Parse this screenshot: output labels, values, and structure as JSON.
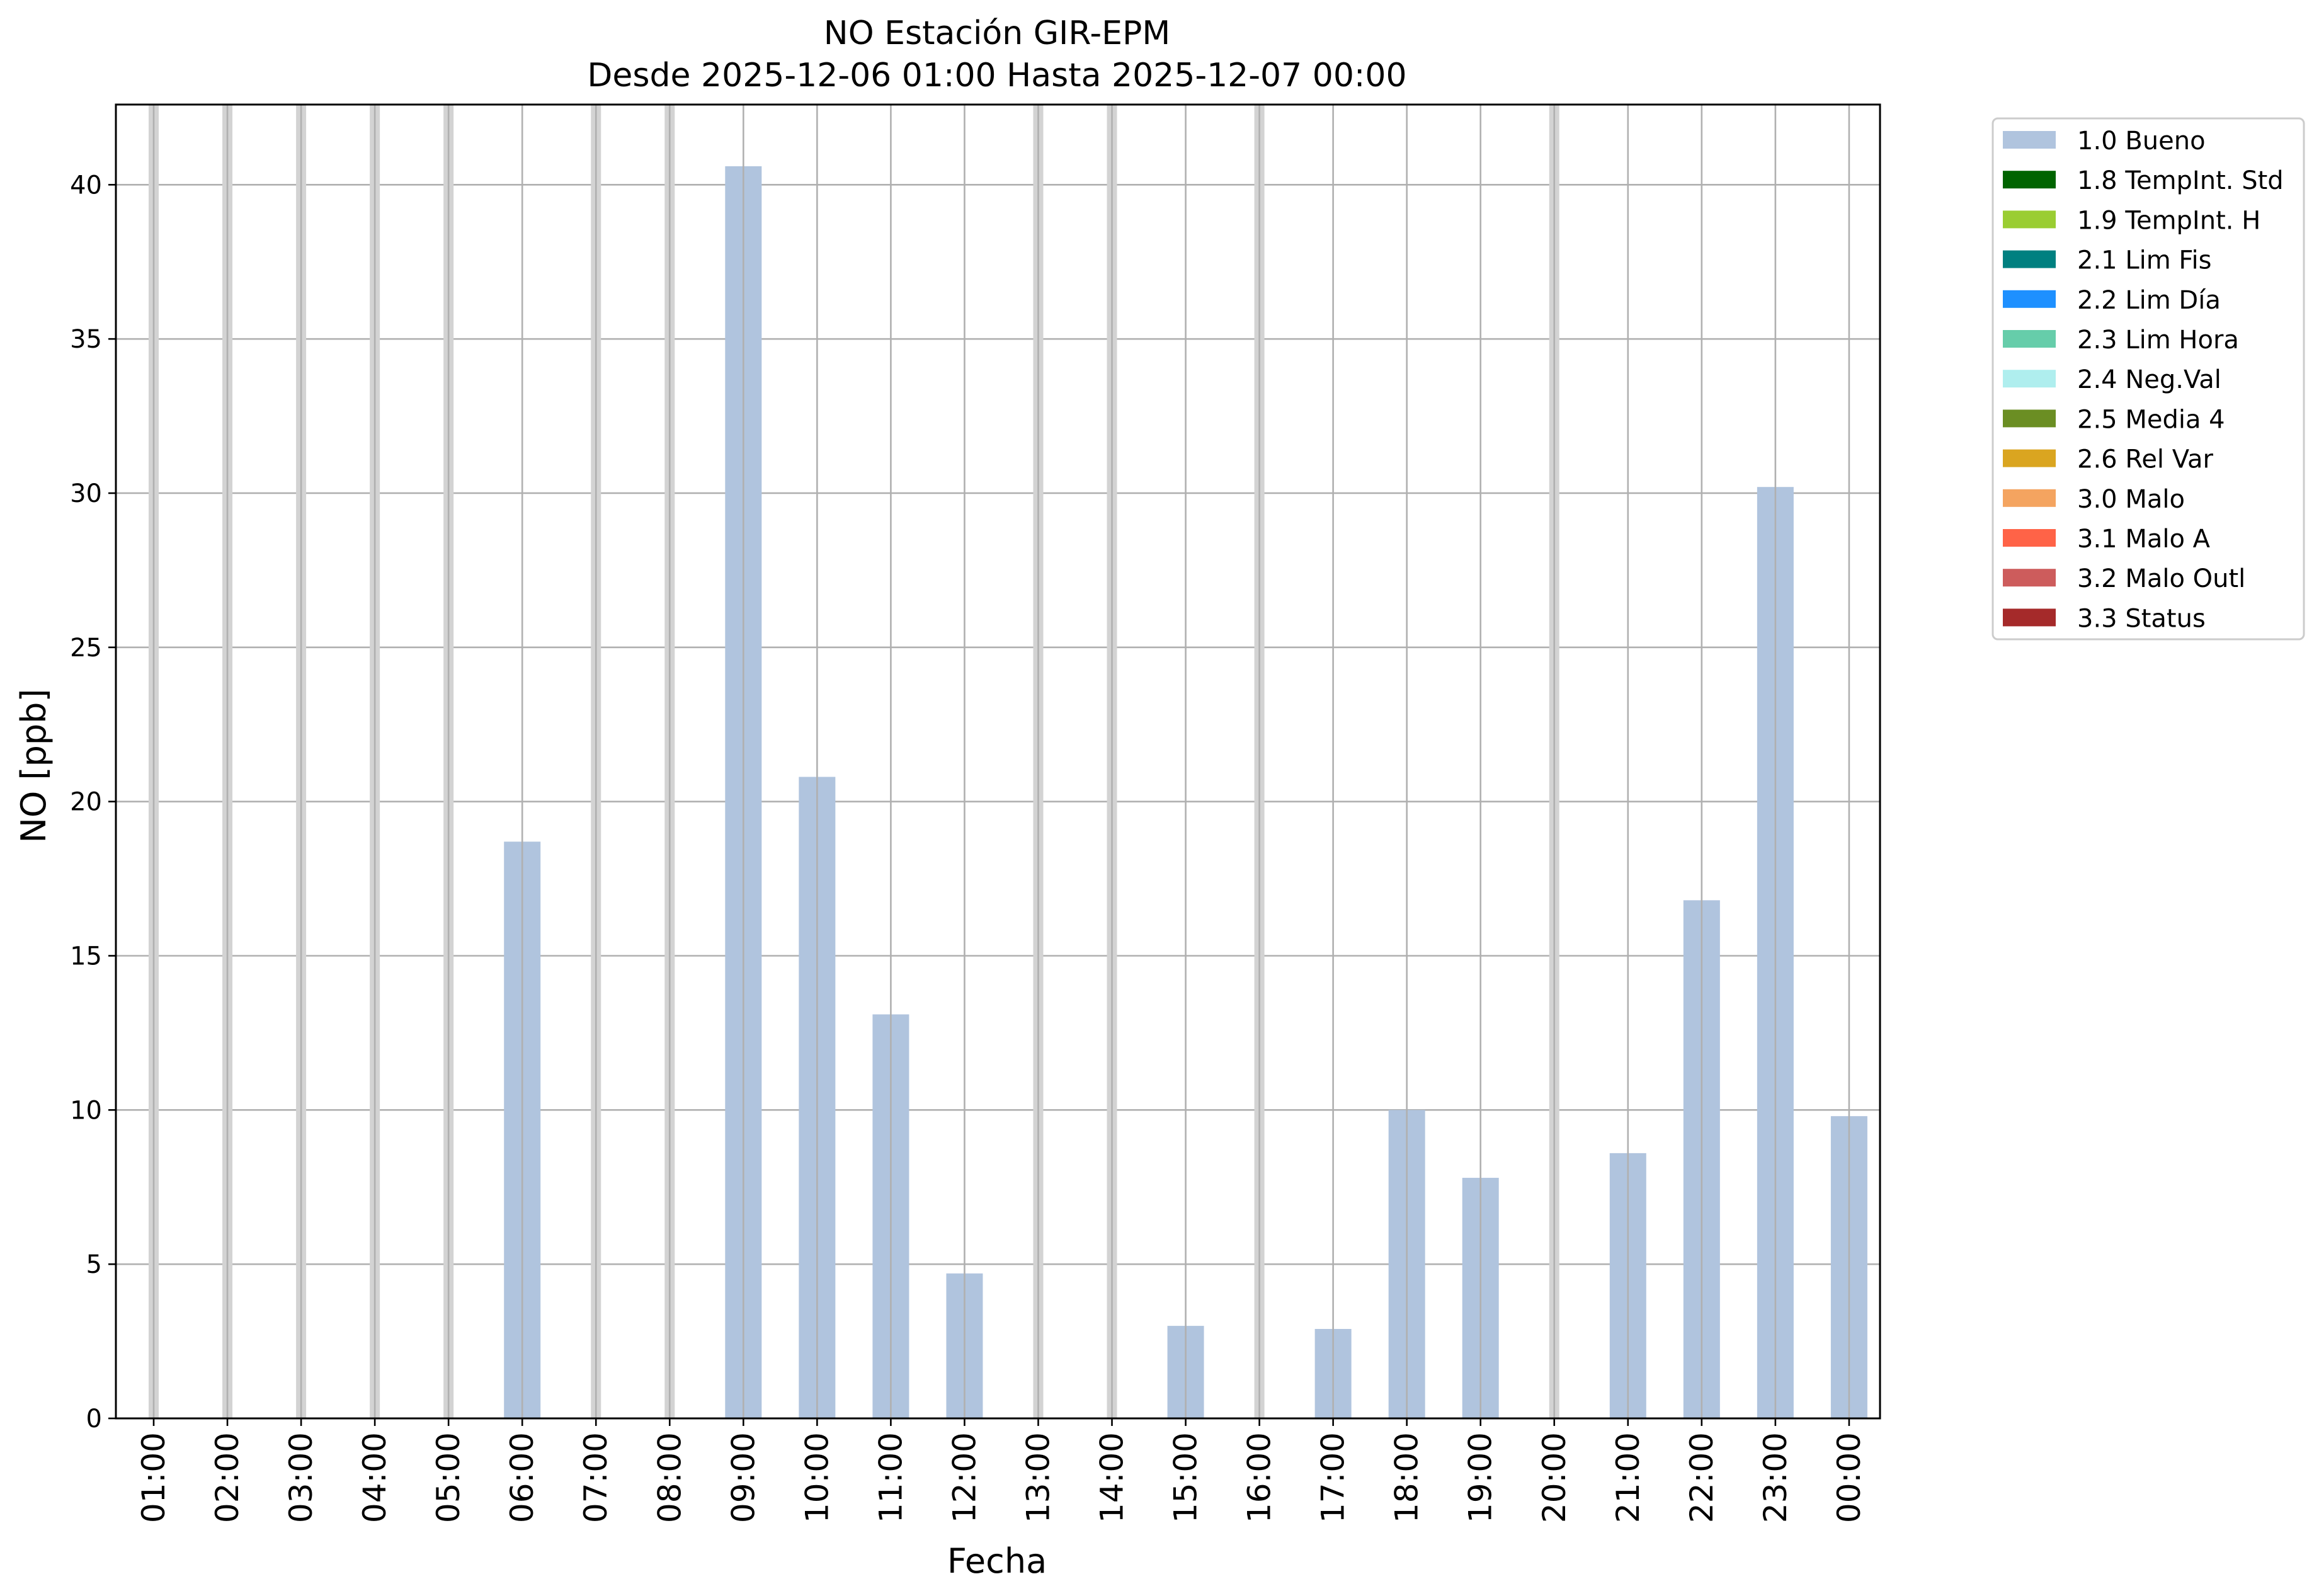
{
  "chart_data": {
    "type": "bar",
    "title": "NO Estación GIR-EPM",
    "subtitle": "Desde 2025-12-06 01:00 Hasta 2025-12-07 00:00",
    "xlabel": "Fecha",
    "ylabel": "NO [ppb]",
    "categories": [
      "01:00",
      "02:00",
      "03:00",
      "04:00",
      "05:00",
      "06:00",
      "07:00",
      "08:00",
      "09:00",
      "10:00",
      "11:00",
      "12:00",
      "13:00",
      "14:00",
      "15:00",
      "16:00",
      "17:00",
      "18:00",
      "19:00",
      "20:00",
      "21:00",
      "22:00",
      "23:00",
      "00:00"
    ],
    "series": [
      {
        "name": "1.0 Bueno",
        "color": "#b0c4de",
        "values": [
          null,
          null,
          null,
          null,
          null,
          18.7,
          null,
          null,
          40.6,
          20.8,
          13.1,
          4.7,
          null,
          null,
          3.0,
          null,
          2.9,
          10.0,
          7.8,
          null,
          8.6,
          16.8,
          30.2,
          9.8
        ]
      }
    ],
    "missing_markers": [
      "01:00",
      "02:00",
      "03:00",
      "04:00",
      "05:00",
      "07:00",
      "08:00",
      "13:00",
      "14:00",
      "16:00",
      "20:00"
    ],
    "ylim": [
      0,
      42.6
    ],
    "yticks": [
      0,
      5,
      10,
      15,
      20,
      25,
      30,
      35,
      40
    ],
    "grid": true,
    "legend_placement": "outside-top-right",
    "legend": [
      {
        "label": "1.0 Bueno",
        "color": "#b0c4de"
      },
      {
        "label": "1.8 TempInt. Std",
        "color": "#006400"
      },
      {
        "label": "1.9 TempInt. H",
        "color": "#9acd32"
      },
      {
        "label": "2.1 Lim Fis",
        "color": "#008080"
      },
      {
        "label": "2.2 Lim Día",
        "color": "#1e90ff"
      },
      {
        "label": "2.3 Lim Hora",
        "color": "#66cdaa"
      },
      {
        "label": "2.4 Neg.Val",
        "color": "#afeeee"
      },
      {
        "label": "2.5 Media 4",
        "color": "#6b8e23"
      },
      {
        "label": "2.6 Rel Var",
        "color": "#daa520"
      },
      {
        "label": "3.0 Malo",
        "color": "#f4a460"
      },
      {
        "label": "3.1 Malo A",
        "color": "#ff6347"
      },
      {
        "label": "3.2 Malo Outl",
        "color": "#cd5c5c"
      },
      {
        "label": "3.3 Status",
        "color": "#a52a2a"
      }
    ]
  }
}
